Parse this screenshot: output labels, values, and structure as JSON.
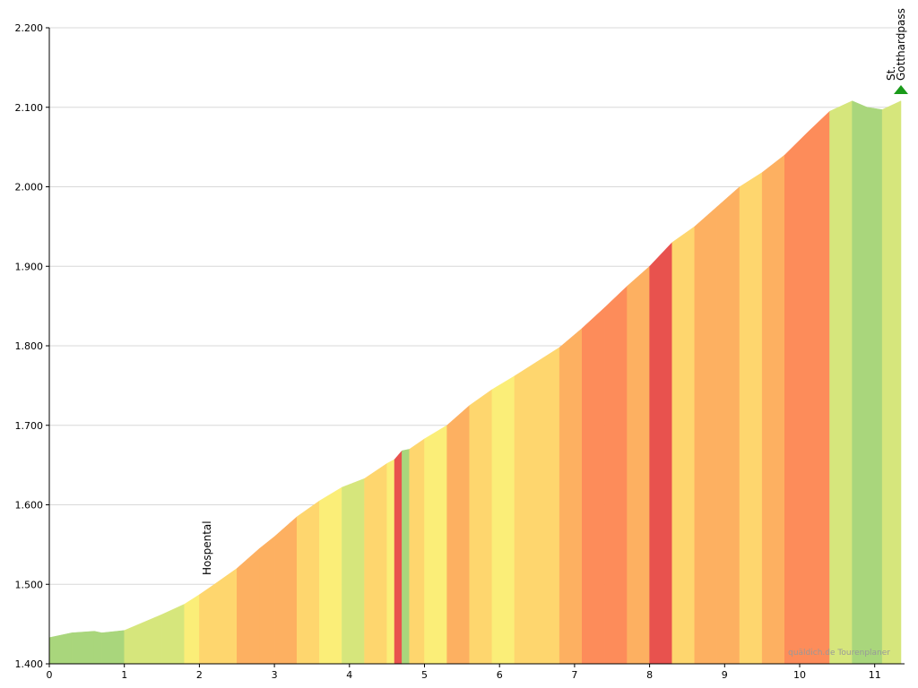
{
  "chart_data": {
    "type": "elevation-profile",
    "watermark": "quäldich.de Tourenplaner",
    "x": [
      0,
      0.3,
      0.6,
      0.7,
      1.0,
      1.2,
      1.5,
      1.8,
      2.0,
      2.2,
      2.5,
      2.8,
      3.0,
      3.3,
      3.6,
      3.9,
      4.2,
      4.5,
      4.6,
      4.7,
      4.8,
      5.0,
      5.3,
      5.6,
      5.9,
      6.2,
      6.5,
      6.8,
      7.1,
      7.4,
      7.7,
      8.0,
      8.3,
      8.6,
      8.9,
      9.2,
      9.5,
      9.8,
      10.1,
      10.4,
      10.7,
      10.9,
      11.1,
      11.35
    ],
    "series": [
      {
        "values": [
          1433,
          1439,
          1441,
          1439,
          1442,
          1450,
          1462,
          1475,
          1487,
          1500,
          1520,
          1545,
          1560,
          1585,
          1605,
          1622,
          1633,
          1652,
          1657,
          1668,
          1670,
          1683,
          1700,
          1725,
          1745,
          1762,
          1780,
          1798,
          1822,
          1848,
          1875,
          1900,
          1930,
          1950,
          1975,
          2000,
          2018,
          2040,
          2068,
          2095,
          2108,
          2100,
          2097,
          2108
        ],
        "segment_colors": [
          "#a9d67c",
          "#a9d67c",
          "#a9d67c",
          "#a9d67c",
          "#d6e67c",
          "#d6e67c",
          "#d6e67c",
          "#fbee78",
          "#fed66e",
          "#fed66e",
          "#fdb061",
          "#fdb061",
          "#fdb061",
          "#fed66e",
          "#fbee78",
          "#d6e67c",
          "#fed66e",
          "#fbee78",
          "#e8524e",
          "#a9d67c",
          "#fed66e",
          "#fbee78",
          "#fdb061",
          "#fed66e",
          "#fbee78",
          "#fed66e",
          "#fed66e",
          "#fdb061",
          "#fd8c5a",
          "#fd8c5a",
          "#fdb061",
          "#e8524e",
          "#fed66e",
          "#fdb061",
          "#fdb061",
          "#fed66e",
          "#fdb061",
          "#fd8c5a",
          "#fd8c5a",
          "#d6e67c",
          "#a9d67c",
          "#a9d67c",
          "#d6e67c"
        ]
      }
    ],
    "xlim": [
      0,
      11.35
    ],
    "ylim": [
      1400,
      2200
    ],
    "xticks": [
      0,
      1,
      2,
      3,
      4,
      5,
      6,
      7,
      8,
      9,
      10,
      11
    ],
    "yticks": [
      {
        "value": 1400,
        "label": "1.400"
      },
      {
        "value": 1500,
        "label": "1.500"
      },
      {
        "value": 1600,
        "label": "1.600"
      },
      {
        "value": 1700,
        "label": "1.700"
      },
      {
        "value": 1800,
        "label": "1.800"
      },
      {
        "value": 1900,
        "label": "1.900"
      },
      {
        "value": 2000,
        "label": "2.000"
      },
      {
        "value": 2100,
        "label": "2.100"
      },
      {
        "value": 2200,
        "label": "2.200"
      }
    ],
    "grid": true,
    "annotations": [
      {
        "label_lines": [
          "Hospental"
        ],
        "x": 2.2,
        "icon": false
      },
      {
        "label_lines": [
          "St.",
          "Gotthardpass"
        ],
        "x": 11.35,
        "icon": true
      }
    ]
  }
}
